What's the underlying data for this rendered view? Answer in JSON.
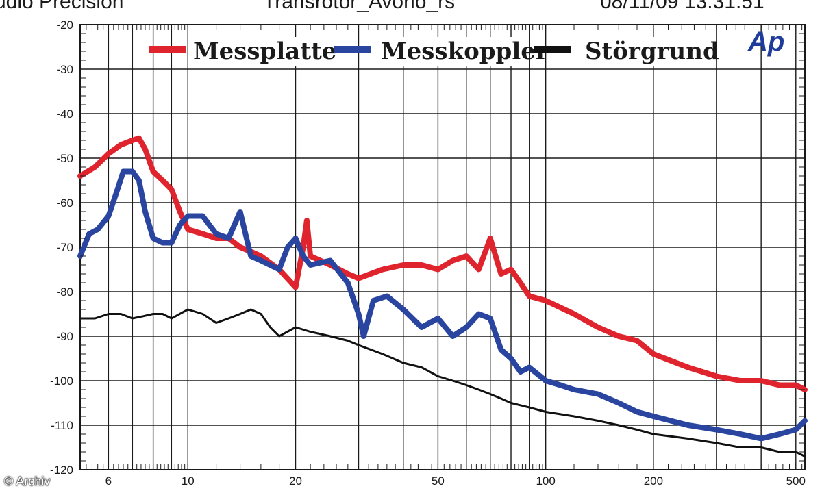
{
  "header": {
    "left": "udio Precision",
    "center": "Transrotor_Avorio_rs",
    "right": "08/11/09 13:31:51"
  },
  "logo": "Ap",
  "watermark": "© Archiv",
  "colors": {
    "messplatte": "#e0242e",
    "messkoppler": "#2a45a0",
    "stoergrund": "#111111",
    "grid": "#1a1a1a",
    "logo": "#1f3c9a"
  },
  "chart_data": {
    "type": "line",
    "title": "",
    "xlabel": "",
    "ylabel": "",
    "x_scale": "log",
    "xlim": [
      5,
      530
    ],
    "ylim": [
      -120,
      -20
    ],
    "grid": true,
    "legend_position": "top",
    "y_ticks": [
      -20,
      -30,
      -40,
      -50,
      -60,
      -70,
      -80,
      -90,
      -100,
      -110,
      -120
    ],
    "x_tick_labels": [
      {
        "value": 6,
        "label": "6"
      },
      {
        "value": 10,
        "label": "10"
      },
      {
        "value": 20,
        "label": "20"
      },
      {
        "value": 50,
        "label": "50"
      },
      {
        "value": 100,
        "label": "100"
      },
      {
        "value": 200,
        "label": "200"
      },
      {
        "value": 500,
        "label": "500"
      }
    ],
    "series": [
      {
        "name": "Messplatte",
        "x": [
          5,
          5.5,
          6,
          6.5,
          7,
          7.3,
          7.6,
          8,
          8.5,
          9,
          9.5,
          10,
          11,
          12,
          13,
          14,
          15,
          16,
          18,
          20,
          21,
          21.5,
          22,
          25,
          28,
          30,
          35,
          40,
          45,
          50,
          55,
          60,
          65,
          70,
          75,
          80,
          85,
          90,
          100,
          120,
          140,
          160,
          180,
          200,
          250,
          300,
          350,
          400,
          450,
          500,
          530
        ],
        "y": [
          -54,
          -52,
          -49,
          -47,
          -46,
          -45.5,
          -48,
          -53,
          -55,
          -57,
          -62,
          -66,
          -67,
          -68,
          -68,
          -70,
          -71,
          -72,
          -75,
          -79,
          -70,
          -64,
          -72,
          -74,
          -76,
          -77,
          -75,
          -74,
          -74,
          -75,
          -73,
          -72,
          -75,
          -68,
          -76,
          -75,
          -78,
          -81,
          -82,
          -85,
          -88,
          -90,
          -91,
          -94,
          -97,
          -99,
          -100,
          -100,
          -101,
          -101,
          -102
        ]
      },
      {
        "name": "Messkoppler",
        "x": [
          5,
          5.3,
          5.6,
          6,
          6.3,
          6.6,
          7,
          7.3,
          7.6,
          8,
          8.5,
          9,
          9.5,
          10,
          11,
          12,
          13,
          14,
          15,
          16,
          18,
          19,
          20,
          21,
          22,
          25,
          28,
          30,
          31,
          33,
          36,
          40,
          45,
          50,
          55,
          60,
          65,
          70,
          75,
          80,
          85,
          90,
          100,
          110,
          120,
          140,
          160,
          180,
          200,
          250,
          300,
          350,
          400,
          450,
          500,
          530
        ],
        "y": [
          -72,
          -67,
          -66,
          -63,
          -58,
          -53,
          -53,
          -55,
          -62,
          -68,
          -69,
          -69,
          -65,
          -63,
          -63,
          -67,
          -68,
          -62,
          -72,
          -73,
          -75,
          -70,
          -68,
          -72,
          -74,
          -73,
          -78,
          -85,
          -90,
          -82,
          -81,
          -84,
          -88,
          -86,
          -90,
          -88,
          -85,
          -86,
          -93,
          -95,
          -98,
          -97,
          -100,
          -101,
          -102,
          -103,
          -105,
          -107,
          -108,
          -110,
          -111,
          -112,
          -113,
          -112,
          -111,
          -109
        ]
      },
      {
        "name": "Störgrund",
        "x": [
          5,
          5.5,
          6,
          6.5,
          7,
          7.5,
          8,
          8.5,
          9,
          10,
          11,
          12,
          13,
          14,
          15,
          16,
          17,
          18,
          20,
          22,
          25,
          28,
          30,
          35,
          40,
          45,
          50,
          55,
          60,
          65,
          70,
          75,
          80,
          90,
          100,
          120,
          140,
          160,
          180,
          200,
          250,
          300,
          350,
          400,
          450,
          500,
          530
        ],
        "y": [
          -86,
          -86,
          -85,
          -85,
          -86,
          -85.5,
          -85,
          -85,
          -86,
          -84,
          -85,
          -87,
          -86,
          -85,
          -84,
          -85,
          -88,
          -90,
          -88,
          -89,
          -90,
          -91,
          -92,
          -94,
          -96,
          -97,
          -99,
          -100,
          -101,
          -102,
          -103,
          -104,
          -105,
          -106,
          -107,
          -108,
          -109,
          -110,
          -111,
          -112,
          -113,
          -114,
          -115,
          -115,
          -116,
          -116,
          -117
        ]
      }
    ]
  }
}
